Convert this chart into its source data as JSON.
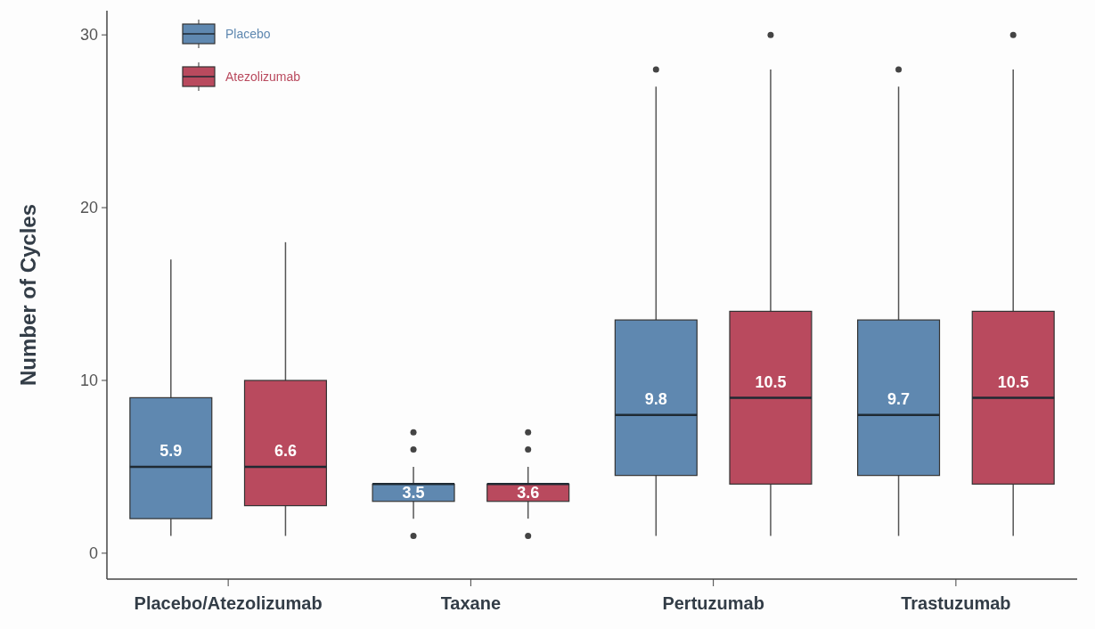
{
  "chart_data": {
    "type": "box",
    "ylabel": "Number of Cycles",
    "categories": [
      "Placebo/Atezolizumab",
      "Taxane",
      "Pertuzumab",
      "Trastuzumab"
    ],
    "ylim": [
      -1.5,
      31.4
    ],
    "yticks": [
      0,
      10,
      20,
      30
    ],
    "grid": false,
    "legend": "top left",
    "series": [
      {
        "name": "Placebo",
        "color": "#5f88b0",
        "value_labels": [
          "5.9",
          "3.5",
          "9.8",
          "9.7"
        ],
        "boxes": [
          {
            "low": 1,
            "q1": 2,
            "median": 5,
            "q3": 9,
            "high": 17
          },
          {
            "low": 2,
            "q1": 3,
            "median": 4,
            "q3": 4,
            "high": 5,
            "outliers": [
              1,
              6,
              7
            ]
          },
          {
            "low": 1,
            "q1": 4.5,
            "median": 8,
            "q3": 13.5,
            "high": 27,
            "outliers": [
              28
            ]
          },
          {
            "low": 1,
            "q1": 4.5,
            "median": 8,
            "q3": 13.5,
            "high": 27,
            "outliers": [
              28
            ]
          }
        ]
      },
      {
        "name": "Atezolizumab",
        "color": "#b94a5e",
        "value_labels": [
          "6.6",
          "3.6",
          "10.5",
          "10.5"
        ],
        "boxes": [
          {
            "low": 1,
            "q1": 2.75,
            "median": 5,
            "q3": 10,
            "high": 18
          },
          {
            "low": 2,
            "q1": 3,
            "median": 4,
            "q3": 4,
            "high": 5,
            "outliers": [
              1,
              6,
              7
            ]
          },
          {
            "low": 1,
            "q1": 4,
            "median": 9,
            "q3": 14,
            "high": 28,
            "outliers": [
              30
            ]
          },
          {
            "low": 1,
            "q1": 4,
            "median": 9,
            "q3": 14,
            "high": 28,
            "outliers": [
              30
            ]
          }
        ]
      }
    ]
  }
}
